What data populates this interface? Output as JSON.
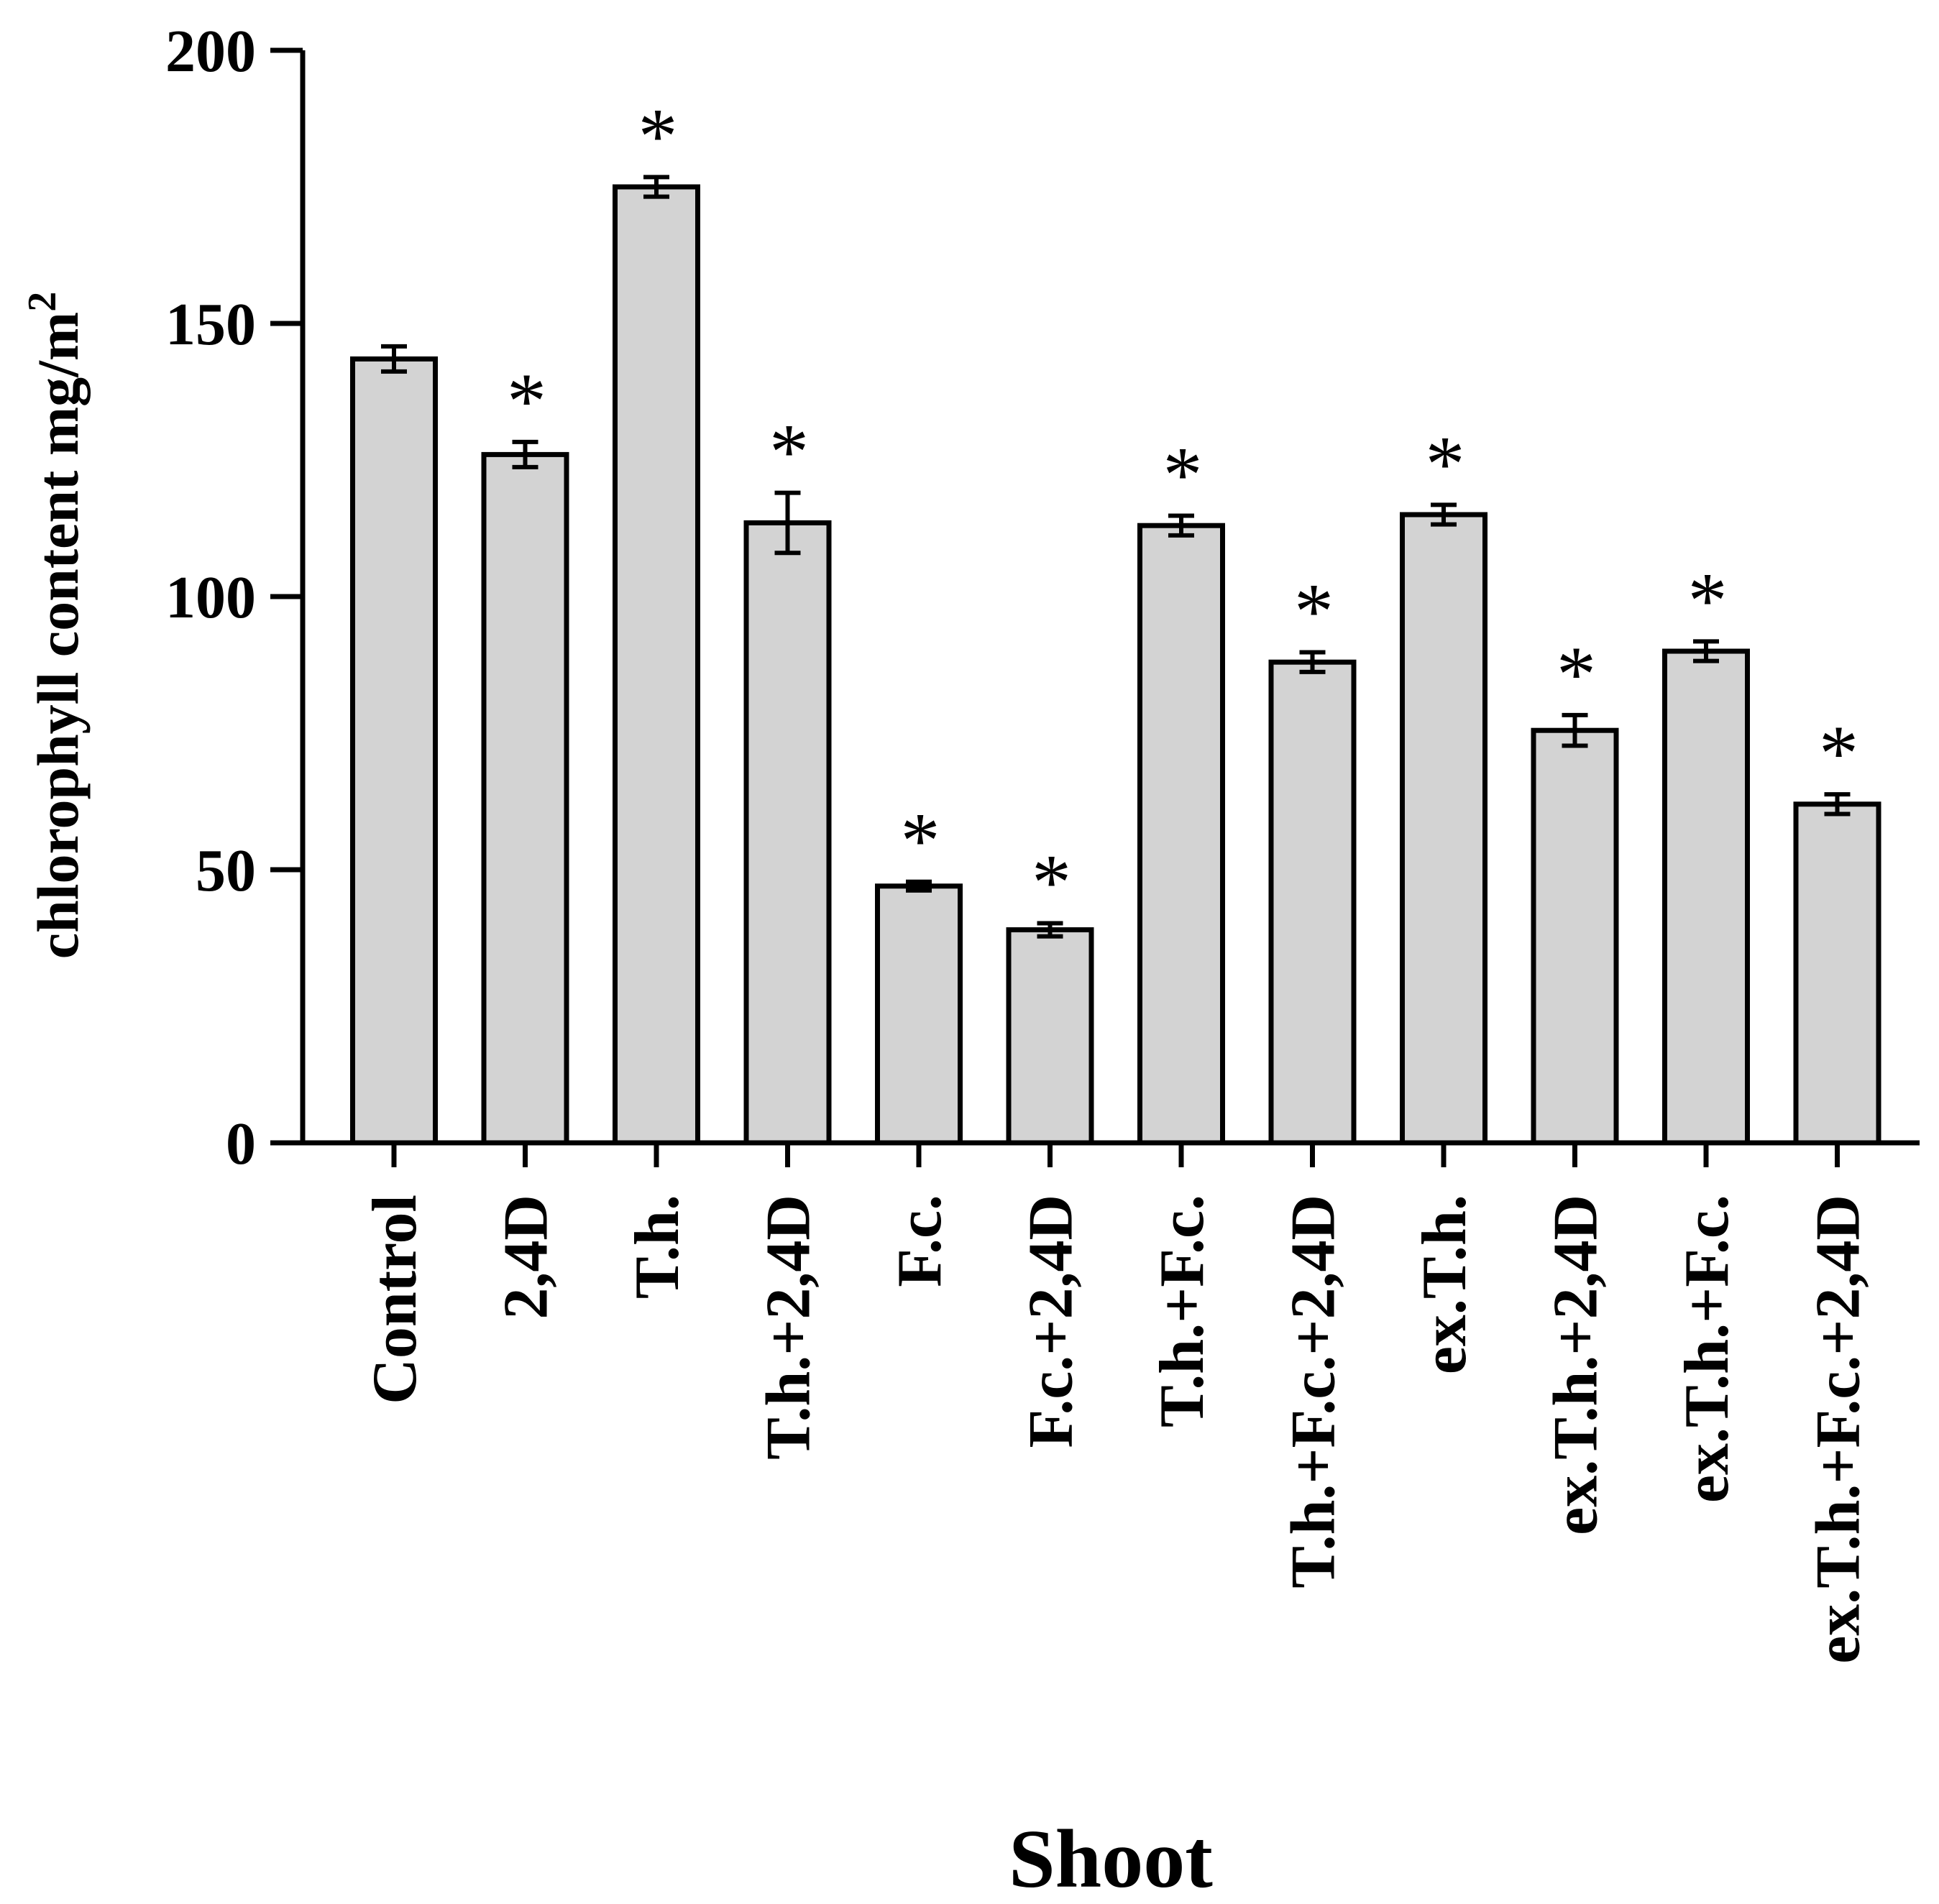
{
  "chart_data": {
    "type": "bar",
    "categories": [
      "Control",
      "2,4D",
      "T.h.",
      "T.h.+2,4D",
      "F.c.",
      "F.c.+2,4D",
      "T.h.+F.c.",
      "T.h.+F.c.+2,4D",
      "ex.T.h.",
      "ex.T.h.+2,4D",
      "ex.T.h.+F.c.",
      "ex.T.h.+F.c.+2,4D"
    ],
    "values": [
      143.5,
      126,
      175,
      113.5,
      47,
      39,
      113,
      88,
      115,
      75.5,
      90,
      62
    ],
    "errors": [
      2.3,
      2.3,
      1.8,
      5.5,
      0.8,
      1.2,
      1.8,
      1.8,
      1.8,
      2.8,
      1.8,
      1.8
    ],
    "significance": [
      "",
      "*",
      "*",
      "*",
      "*",
      "*",
      "*",
      "*",
      "*",
      "*",
      "*",
      "*"
    ],
    "xlabel": "Shoot",
    "ylabel": "chlorophyll content mg/m",
    "ylabel_superscript": "2",
    "ylim": [
      0,
      200
    ],
    "yticks": [
      "0",
      "50",
      "100",
      "150",
      "200"
    ],
    "grid": false,
    "bar_color": "#d3d3d3",
    "edge_color": "#000000"
  }
}
